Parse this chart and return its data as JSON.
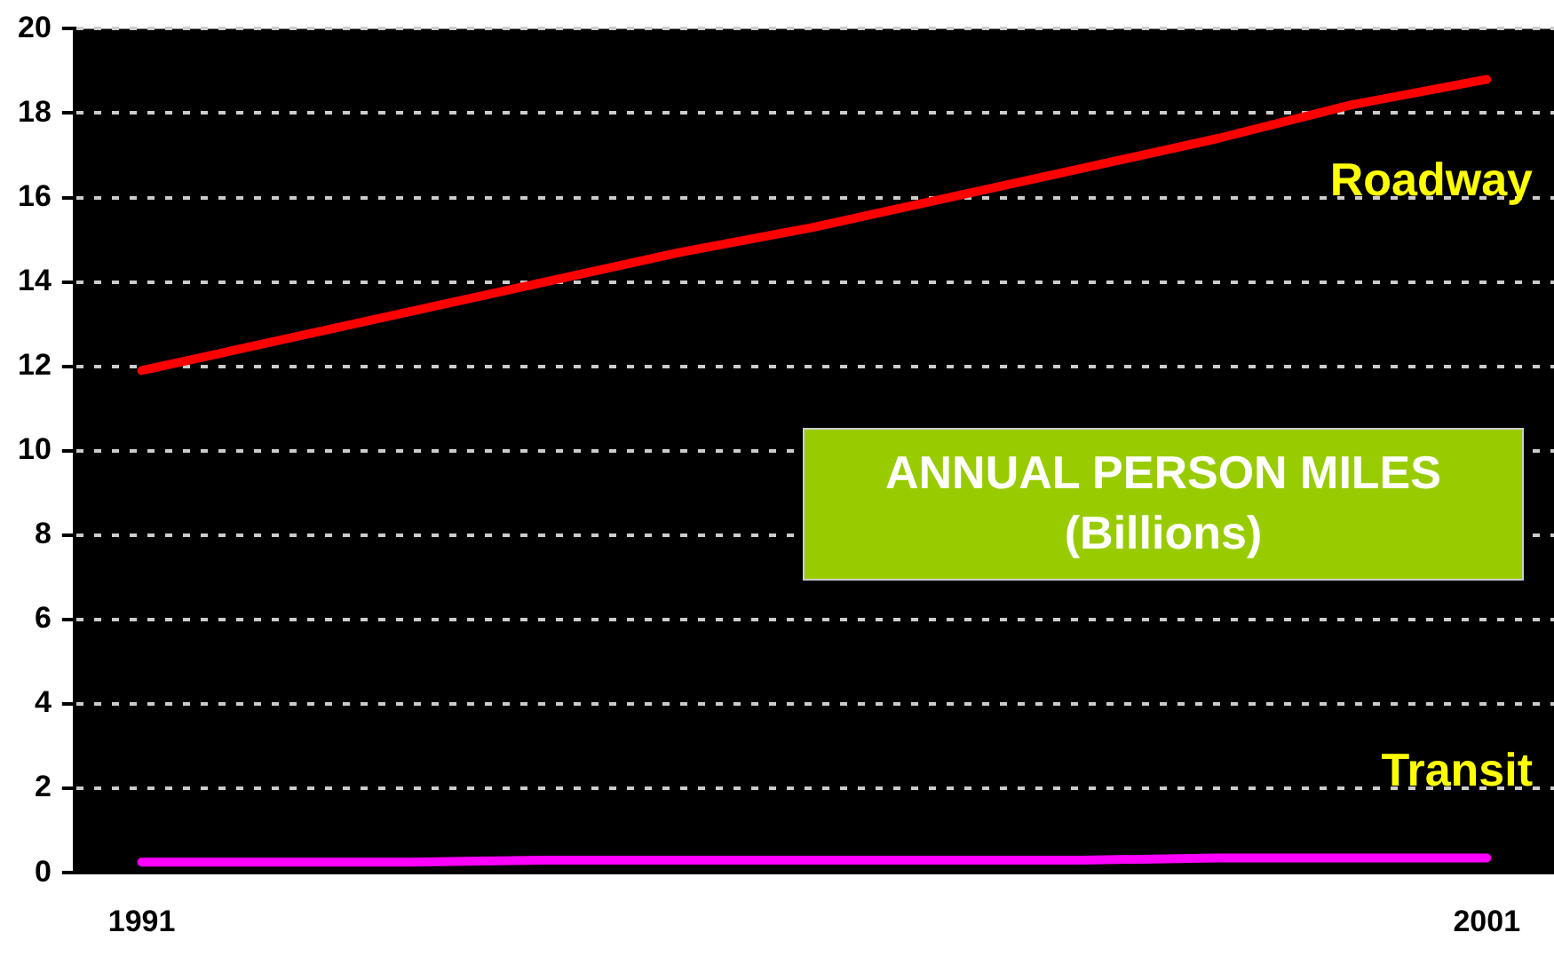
{
  "chart_data": {
    "type": "line",
    "title": "ANNUAL PERSON MILES (Billions)",
    "categories": [
      "1991",
      null,
      null,
      null,
      null,
      null,
      null,
      null,
      null,
      null,
      "2001"
    ],
    "ylim": [
      0,
      20
    ],
    "yticks": [
      0,
      2,
      4,
      6,
      8,
      10,
      12,
      14,
      16,
      18,
      20
    ],
    "grid": "y",
    "legend": false,
    "marker": "none",
    "line_style": "solid",
    "series": [
      {
        "name": "Roadway",
        "color": "#ff0000",
        "values": [
          11.9,
          12.6,
          13.3,
          14.0,
          14.7,
          15.3,
          16.0,
          16.7,
          17.4,
          18.2,
          18.8
        ]
      },
      {
        "name": "Transit",
        "color": "#ff00ff",
        "values": [
          0.25,
          0.25,
          0.25,
          0.3,
          0.3,
          0.3,
          0.3,
          0.3,
          0.35,
          0.35,
          0.35
        ]
      }
    ]
  }
}
